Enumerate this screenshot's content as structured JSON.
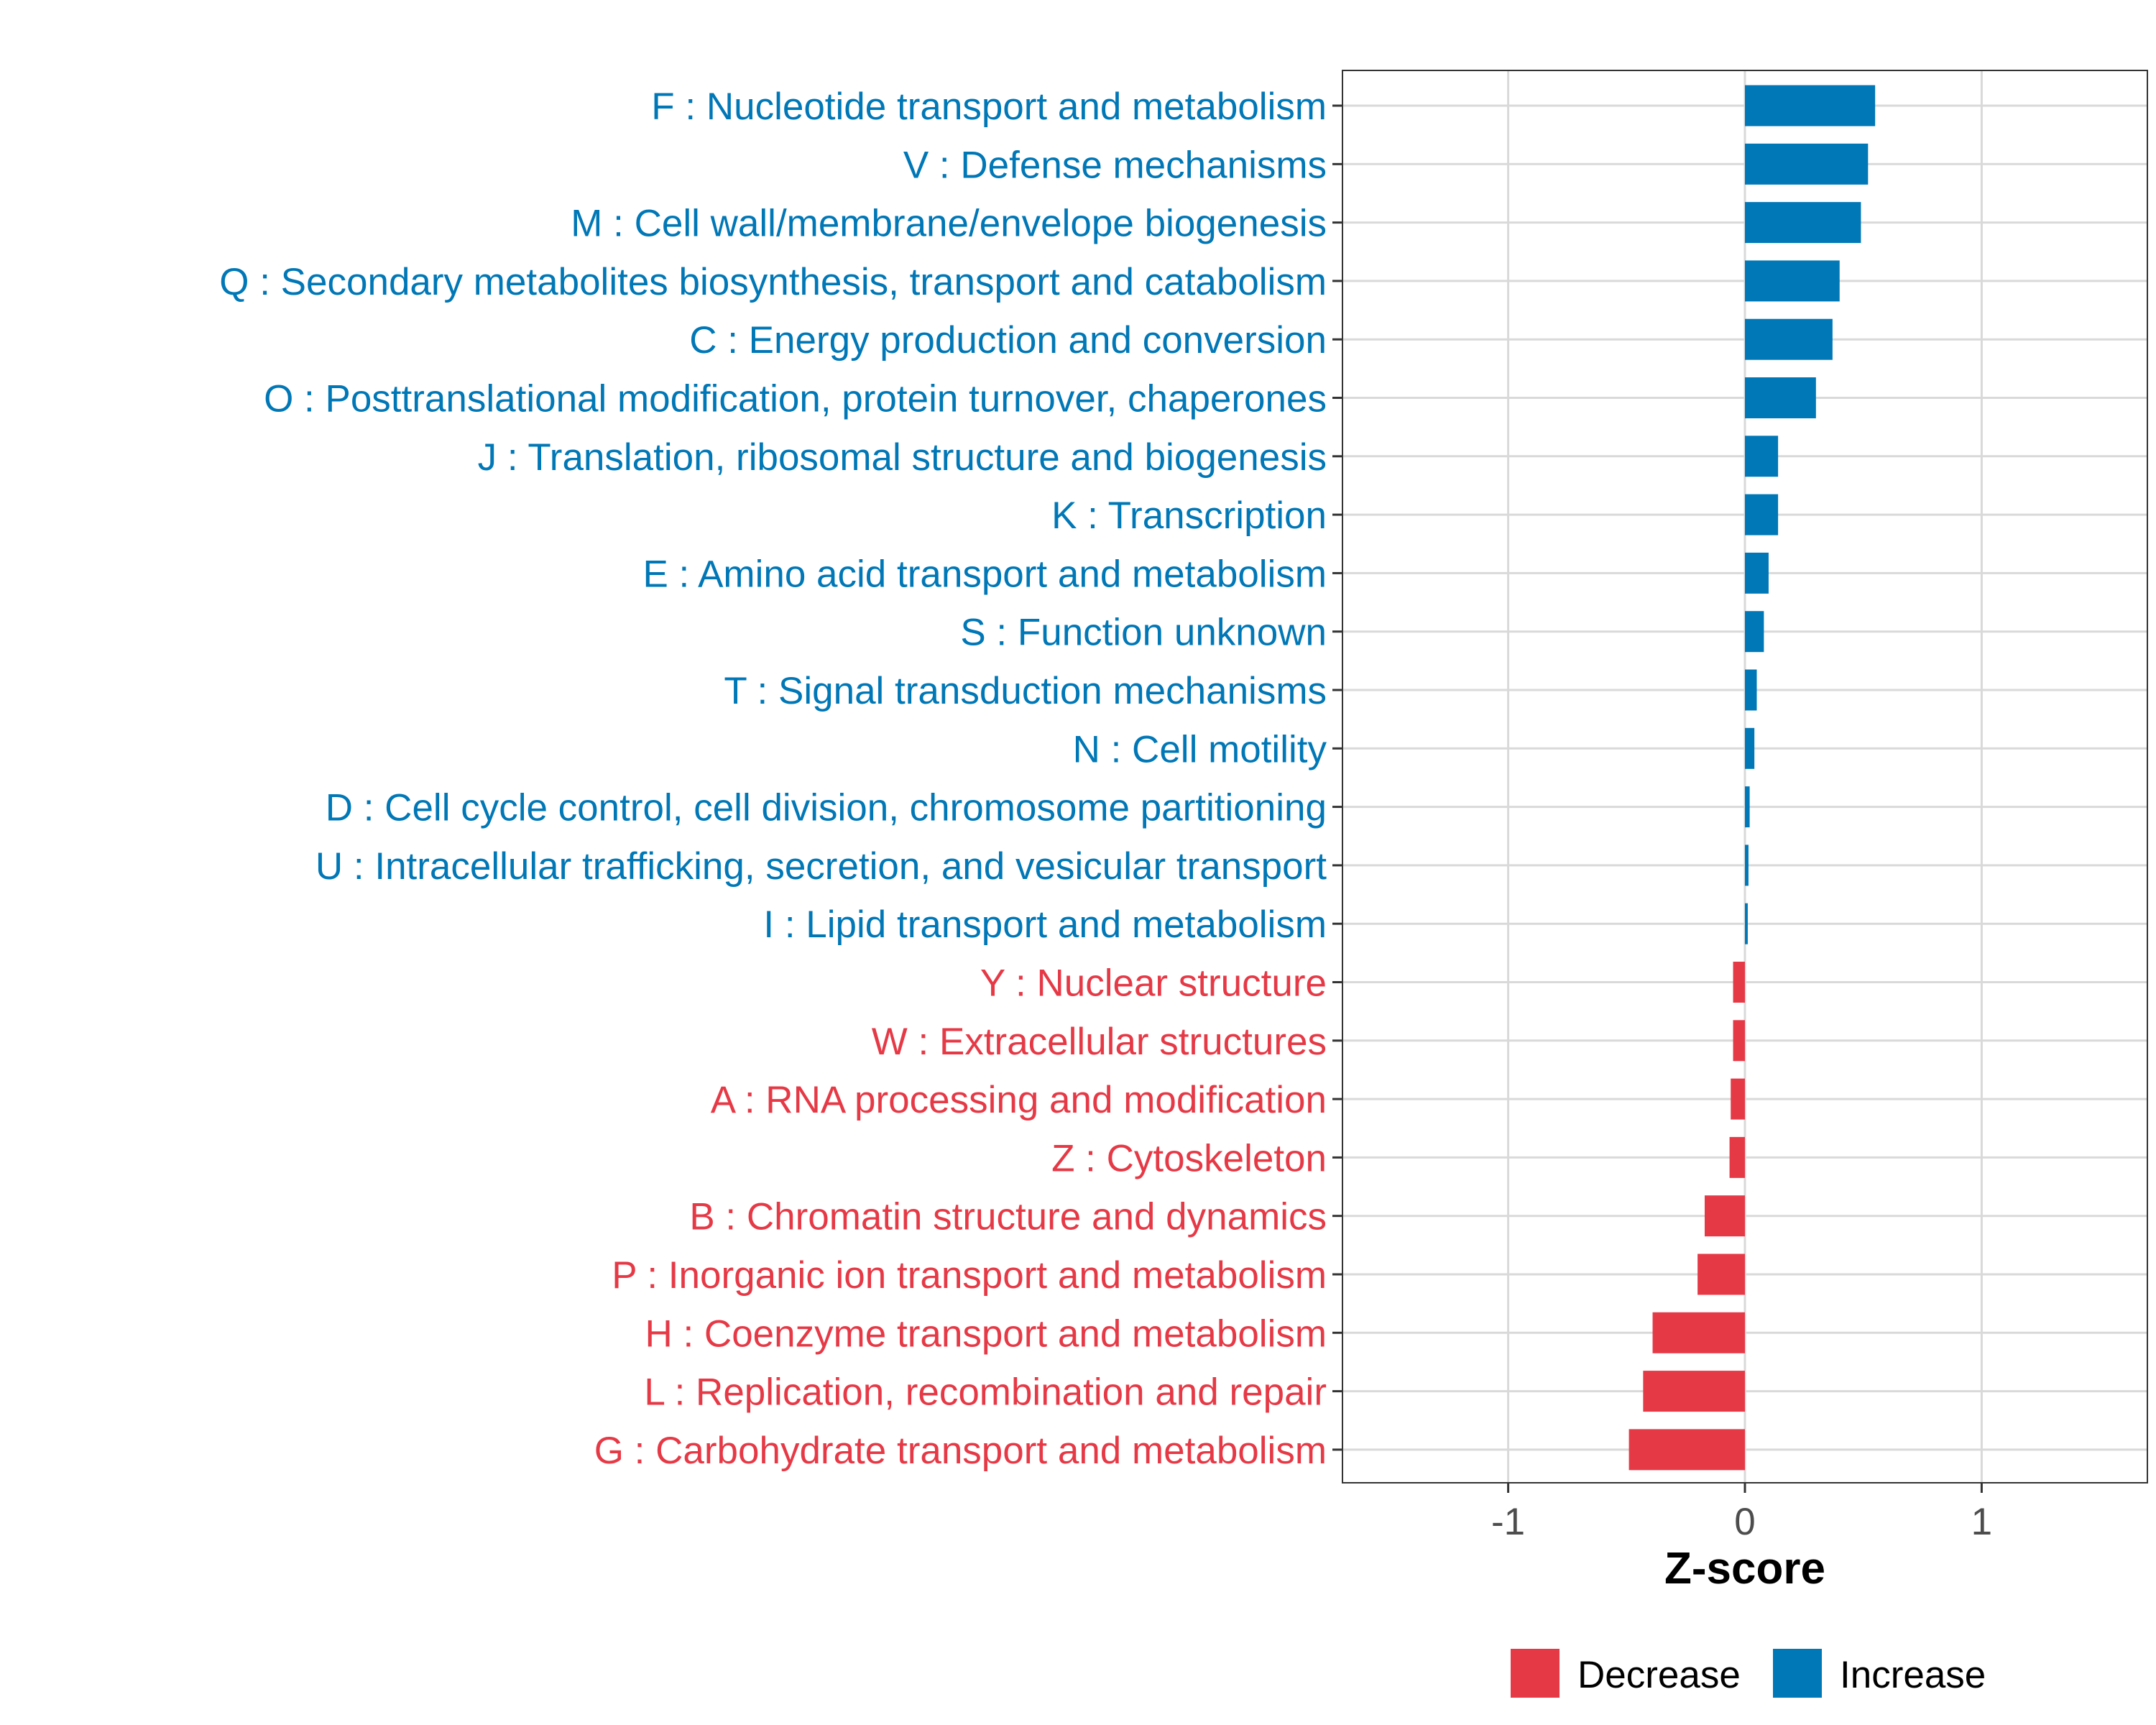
{
  "chart_data": {
    "type": "bar",
    "orientation": "horizontal",
    "title": "",
    "xlabel": "Z-score",
    "ylabel": "",
    "xlim": [
      -1.7,
      1.7
    ],
    "xticks": [
      -1,
      0,
      1
    ],
    "xtick_labels": [
      "-1",
      "0",
      "1"
    ],
    "grid": true,
    "legend_position": "bottom",
    "legend": [
      {
        "name": "Decrease",
        "color": "#E63946"
      },
      {
        "name": "Increase",
        "color": "#0077B6"
      }
    ],
    "categories": [
      "F : Nucleotide transport and metabolism",
      "V : Defense mechanisms",
      "M : Cell wall/membrane/envelope biogenesis",
      "Q : Secondary metabolites biosynthesis, transport and catabolism",
      "C : Energy production and conversion",
      "O : Posttranslational modification, protein turnover, chaperones",
      "J : Translation, ribosomal structure and biogenesis",
      "K : Transcription",
      "E : Amino acid transport and metabolism",
      "S : Function unknown",
      "T : Signal transduction mechanisms",
      "N : Cell motility",
      "D : Cell cycle control, cell division, chromosome partitioning",
      "U : Intracellular trafficking, secretion, and vesicular transport",
      "I : Lipid transport and metabolism",
      "Y : Nuclear structure",
      "W : Extracellular structures",
      "A : RNA processing and modification",
      "Z : Cytoskeleton",
      "B : Chromatin structure and dynamics",
      "P : Inorganic ion transport and metabolism",
      "H : Coenzyme transport and metabolism",
      "L : Replication, recombination and repair",
      "G : Carbohydrate transport and metabolism"
    ],
    "values": [
      0.55,
      0.52,
      0.49,
      0.4,
      0.37,
      0.3,
      0.14,
      0.14,
      0.1,
      0.08,
      0.05,
      0.04,
      0.02,
      0.015,
      0.012,
      -0.05,
      -0.05,
      -0.06,
      -0.065,
      -0.17,
      -0.2,
      -0.39,
      -0.43,
      -0.49
    ],
    "groups": [
      "Increase",
      "Increase",
      "Increase",
      "Increase",
      "Increase",
      "Increase",
      "Increase",
      "Increase",
      "Increase",
      "Increase",
      "Increase",
      "Increase",
      "Increase",
      "Increase",
      "Increase",
      "Decrease",
      "Decrease",
      "Decrease",
      "Decrease",
      "Decrease",
      "Decrease",
      "Decrease",
      "Decrease",
      "Decrease"
    ]
  }
}
